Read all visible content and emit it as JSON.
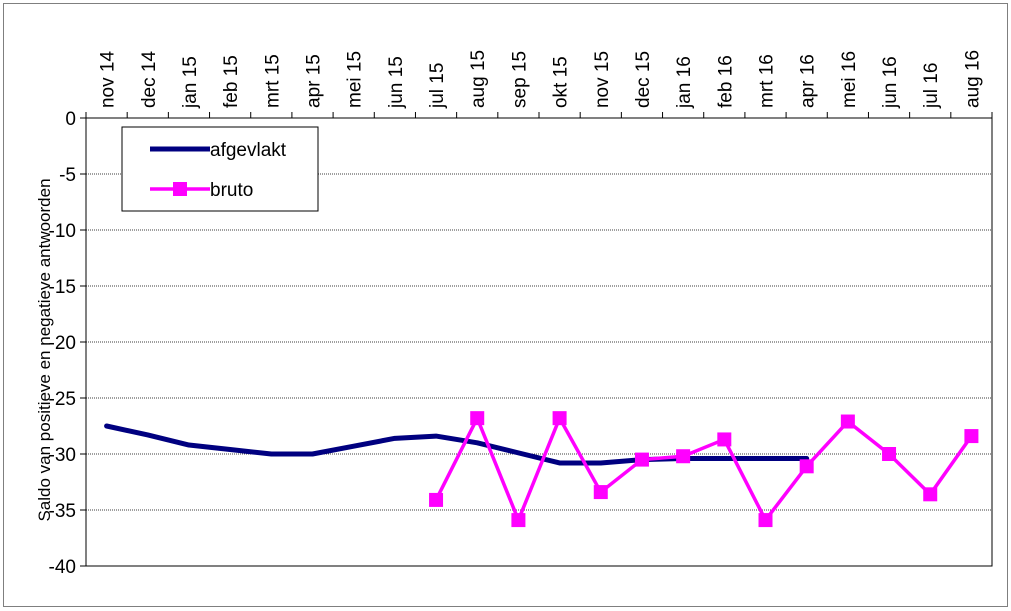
{
  "chart_data": {
    "type": "line",
    "title": "",
    "xlabel": "",
    "ylabel": "Saldo van positieve en negatieve antwoorden",
    "ylim": [
      -40,
      0
    ],
    "yticks": [
      0,
      -5,
      -10,
      -15,
      -20,
      -25,
      -30,
      -35,
      -40
    ],
    "y_tick_labels": [
      "0",
      "-5",
      "-10",
      "-15",
      "-20",
      "-25",
      "-30",
      "-35",
      "-40"
    ],
    "grid": true,
    "legend_placement": "top-left",
    "categories": [
      "nov 14",
      "dec 14",
      "jan 15",
      "feb 15",
      "mrt 15",
      "apr 15",
      "mei 15",
      "jun 15",
      "jul 15",
      "aug 15",
      "sep 15",
      "okt 15",
      "nov 15",
      "dec 15",
      "jan 16",
      "feb 16",
      "mrt 16",
      "apr 16",
      "mei 16",
      "jun 16",
      "jul 16",
      "aug 16"
    ],
    "series": [
      {
        "name": "afgevlakt",
        "color": "#000080",
        "marker": "none",
        "values": [
          -27.5,
          -28.3,
          -29.2,
          -29.6,
          -30.0,
          -30.0,
          -29.3,
          -28.6,
          -28.4,
          -29.0,
          -29.9,
          -30.8,
          -30.8,
          -30.5,
          -30.4,
          -30.4,
          -30.4,
          -30.4,
          null,
          null,
          null,
          null
        ]
      },
      {
        "name": "bruto",
        "color": "#ff00ff",
        "marker": "square",
        "values": [
          null,
          null,
          null,
          null,
          null,
          null,
          null,
          null,
          -34.1,
          -26.8,
          -35.9,
          -26.8,
          -33.4,
          -30.5,
          -30.2,
          -28.7,
          -35.9,
          -31.1,
          -27.1,
          -30.0,
          -33.6,
          -28.4
        ]
      }
    ]
  }
}
